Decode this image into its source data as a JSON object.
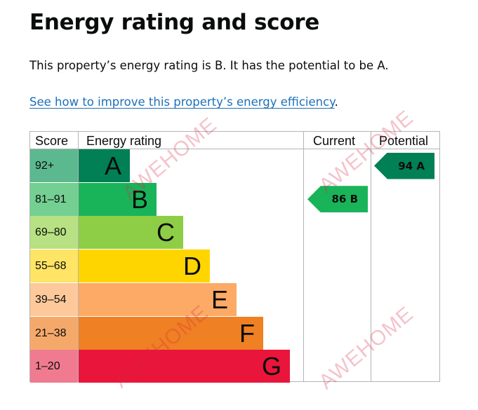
{
  "page": {
    "title": "Energy rating and score",
    "summary": "This property’s energy rating is B. It has the potential to be A.",
    "improve_link": "See how to improve this property’s energy efficiency",
    "improve_suffix": "."
  },
  "epc": {
    "headers": {
      "score": "Score",
      "rating": "Energy rating",
      "current": "Current",
      "potential": "Potential"
    },
    "bands": [
      {
        "letter": "A",
        "range": "92+",
        "bar_color": "#008054",
        "cell_color": "#5cb88e"
      },
      {
        "letter": "B",
        "range": "81–91",
        "bar_color": "#19b459",
        "cell_color": "#74cf92"
      },
      {
        "letter": "C",
        "range": "69–80",
        "bar_color": "#8dce46",
        "cell_color": "#b8e183"
      },
      {
        "letter": "D",
        "range": "55–68",
        "bar_color": "#ffd500",
        "cell_color": "#ffe466"
      },
      {
        "letter": "E",
        "range": "39–54",
        "bar_color": "#fcaa65",
        "cell_color": "#fdc99b"
      },
      {
        "letter": "F",
        "range": "21–38",
        "bar_color": "#ef8023",
        "cell_color": "#f4a96b"
      },
      {
        "letter": "G",
        "range": "1–20",
        "bar_color": "#e9153b",
        "cell_color": "#f07b90"
      }
    ],
    "current": {
      "score": "86",
      "letter": "B",
      "band_index": 1,
      "color": "#19b459"
    },
    "potential": {
      "score": "94",
      "letter": "A",
      "band_index": 0,
      "color": "#008054"
    }
  },
  "watermark": {
    "text": "AWEHOME"
  }
}
